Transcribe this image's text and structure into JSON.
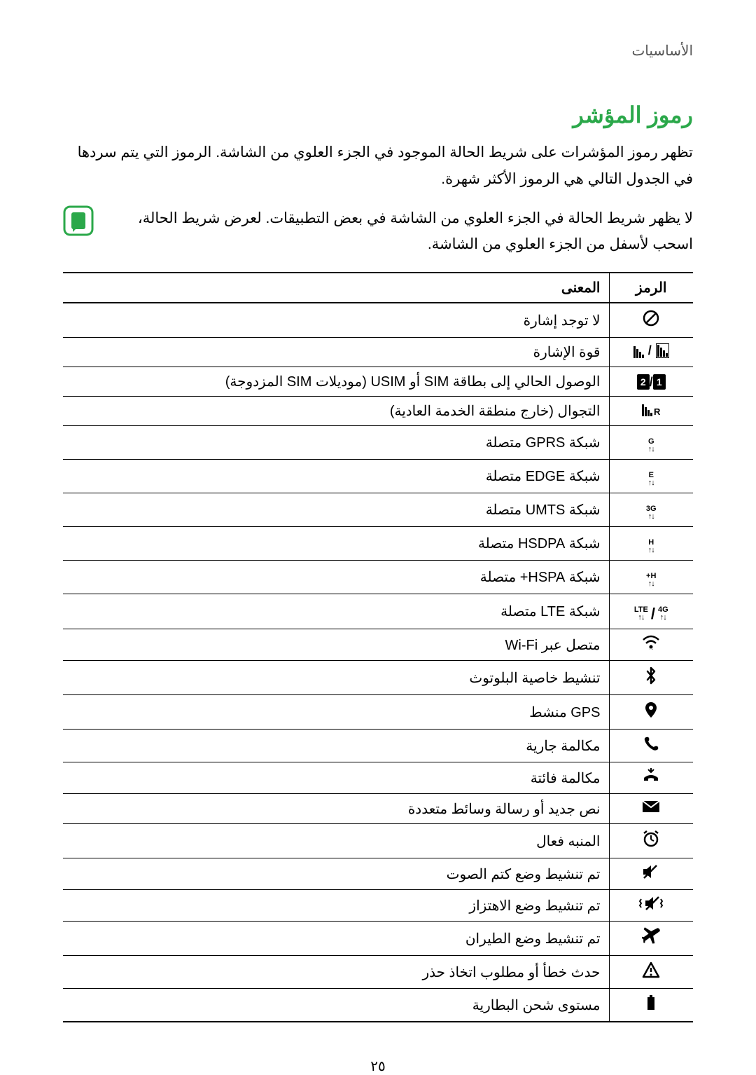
{
  "breadcrumb": "الأساسيات",
  "title": "رموز المؤشر",
  "intro": "تظهر رموز المؤشرات على شريط الحالة الموجود في الجزء العلوي من الشاشة. الرموز التي يتم سردها في الجدول التالي هي الرموز الأكثر شهرة.",
  "note": "لا يظهر شريط الحالة في الجزء العلوي من الشاشة في بعض التطبيقات. لعرض شريط الحالة، اسحب لأسفل من الجزء العلوي من الشاشة.",
  "table": {
    "header_icon": "الرمز",
    "header_meaning": "المعنى",
    "rows": [
      {
        "id": "no-signal",
        "meaning": "لا توجد إشارة"
      },
      {
        "id": "signal-strength",
        "meaning": "قوة الإشارة"
      },
      {
        "id": "sim-access",
        "meaning": "الوصول الحالي إلى بطاقة SIM أو USIM (موديلات SIM المزدوجة)"
      },
      {
        "id": "roaming",
        "meaning": "التجوال (خارج منطقة الخدمة العادية)"
      },
      {
        "id": "gprs",
        "meaning": "شبكة GPRS متصلة"
      },
      {
        "id": "edge",
        "meaning": "شبكة EDGE متصلة"
      },
      {
        "id": "umts",
        "meaning": "شبكة UMTS متصلة"
      },
      {
        "id": "hsdpa",
        "meaning": "شبكة HSDPA متصلة"
      },
      {
        "id": "hspa-plus",
        "meaning": "شبكة HSPA+ متصلة"
      },
      {
        "id": "lte",
        "meaning": "شبكة LTE متصلة"
      },
      {
        "id": "wifi",
        "meaning": "متصل عبر Wi-Fi"
      },
      {
        "id": "bluetooth",
        "meaning": "تنشيط خاصية البلوتوث"
      },
      {
        "id": "gps",
        "meaning": "GPS منشط"
      },
      {
        "id": "call",
        "meaning": "مكالمة جارية"
      },
      {
        "id": "missed-call",
        "meaning": "مكالمة فائتة"
      },
      {
        "id": "message",
        "meaning": "نص جديد أو رسالة وسائط متعددة"
      },
      {
        "id": "alarm",
        "meaning": "المنبه فعال"
      },
      {
        "id": "mute",
        "meaning": "تم تنشيط وضع كتم الصوت"
      },
      {
        "id": "vibrate",
        "meaning": "تم تنشيط وضع الاهتزاز"
      },
      {
        "id": "airplane",
        "meaning": "تم تنشيط وضع الطيران"
      },
      {
        "id": "error",
        "meaning": "حدث خطأ أو مطلوب اتخاذ حذر"
      },
      {
        "id": "battery",
        "meaning": "مستوى شحن البطارية"
      }
    ]
  },
  "page_number": "٢٥"
}
